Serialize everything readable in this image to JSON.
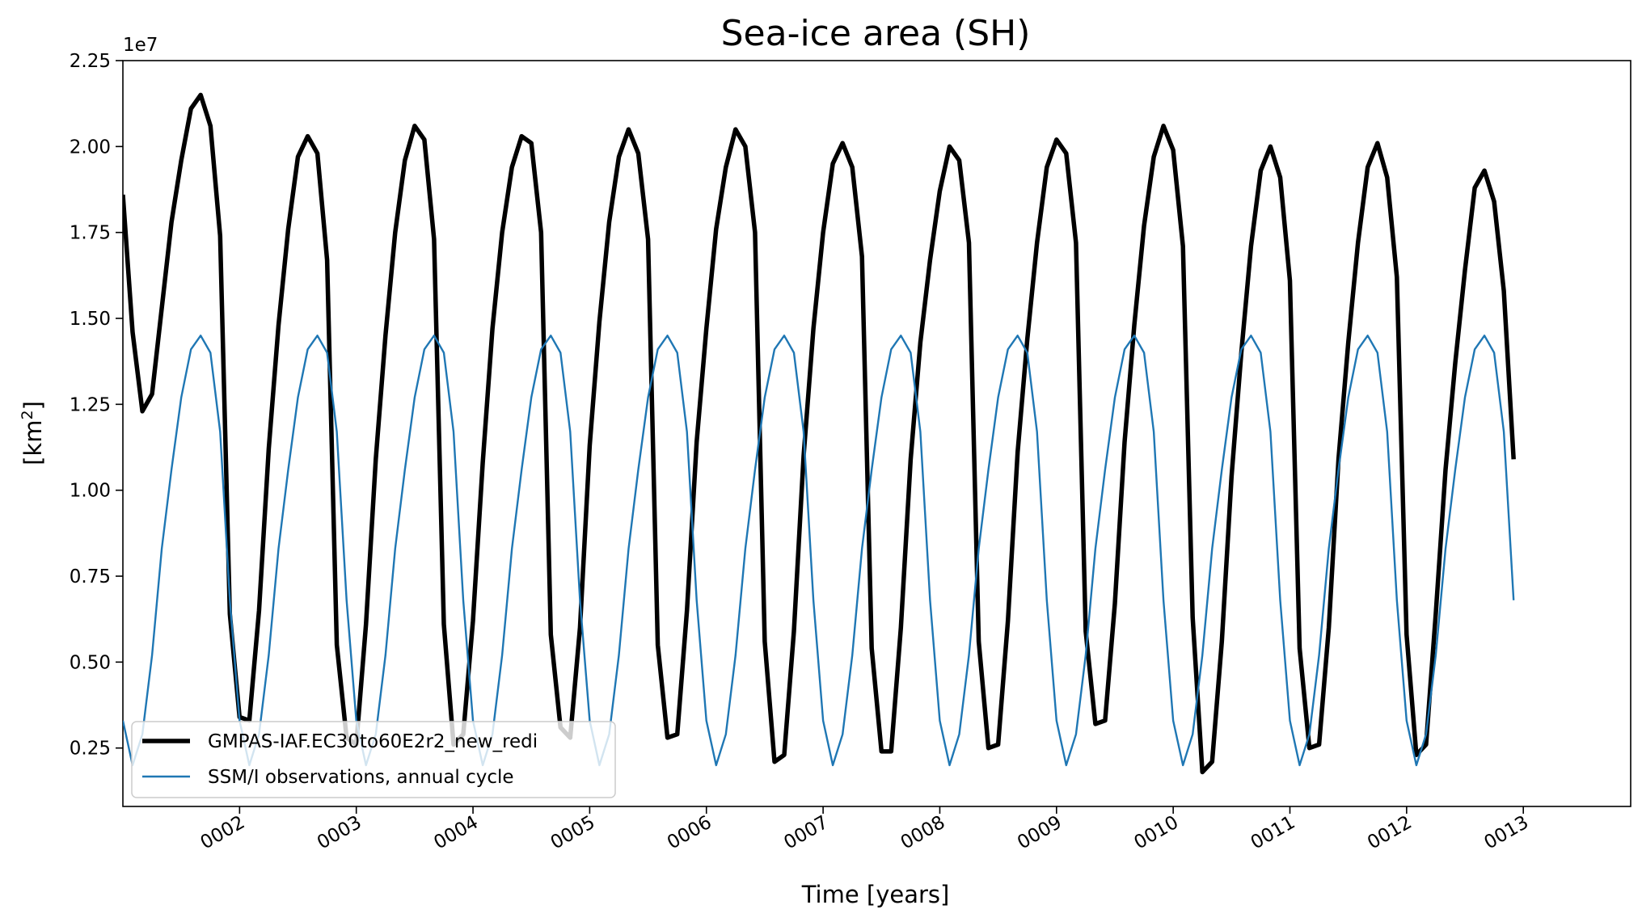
{
  "chart_data": {
    "type": "line",
    "title": "Sea-ice area (SH)",
    "xlabel": "Time [years]",
    "ylabel": "[km²]",
    "y_offset_label": "1e7",
    "y_scale": 10000000,
    "xlim": [
      1.0,
      13.92
    ],
    "ylim": [
      0.08,
      2.25
    ],
    "grid": false,
    "legend_position": "lower-left",
    "x_ticks": [
      2,
      3,
      4,
      5,
      6,
      7,
      8,
      9,
      10,
      11,
      12,
      13
    ],
    "x_tick_labels": [
      "0002",
      "0003",
      "0004",
      "0005",
      "0006",
      "0007",
      "0008",
      "0009",
      "0010",
      "0011",
      "0012",
      "0013"
    ],
    "y_ticks": [
      0.25,
      0.5,
      0.75,
      1.0,
      1.25,
      1.5,
      1.75,
      2.0,
      2.25
    ],
    "y_tick_labels": [
      "0.25",
      "0.50",
      "0.75",
      "1.00",
      "1.25",
      "1.50",
      "1.75",
      "2.00",
      "2.25"
    ],
    "model_years": [
      [
        1.86,
        1.46,
        1.23,
        1.28,
        1.53,
        1.78,
        1.96,
        2.11,
        2.15,
        2.06,
        1.74,
        0.64
      ],
      [
        0.34,
        0.33,
        0.65,
        1.12,
        1.48,
        1.76,
        1.97,
        2.03,
        1.98,
        1.67,
        0.55,
        0.28
      ],
      [
        0.26,
        0.61,
        1.09,
        1.45,
        1.75,
        1.96,
        2.06,
        2.02,
        1.73,
        0.61,
        0.26,
        0.29
      ],
      [
        0.62,
        1.08,
        1.47,
        1.75,
        1.94,
        2.03,
        2.01,
        1.75,
        0.58,
        0.31,
        0.28,
        0.6
      ],
      [
        1.13,
        1.49,
        1.78,
        1.97,
        2.05,
        1.98,
        1.73,
        0.55,
        0.28,
        0.29,
        0.65,
        1.14
      ],
      [
        1.47,
        1.76,
        1.94,
        2.05,
        2.0,
        1.75,
        0.56,
        0.21,
        0.23,
        0.59,
        1.1,
        1.47
      ],
      [
        1.75,
        1.95,
        2.01,
        1.94,
        1.68,
        0.54,
        0.24,
        0.24,
        0.6,
        1.09,
        1.43,
        1.67
      ],
      [
        1.87,
        2.0,
        1.96,
        1.72,
        0.56,
        0.25,
        0.26,
        0.62,
        1.11,
        1.44,
        1.72,
        1.94
      ],
      [
        2.02,
        1.98,
        1.72,
        0.59,
        0.32,
        0.33,
        0.67,
        1.14,
        1.48,
        1.77,
        1.97,
        2.06
      ],
      [
        1.99,
        1.71,
        0.63,
        0.18,
        0.21,
        0.56,
        1.04,
        1.4,
        1.71,
        1.93,
        2.0,
        1.91
      ],
      [
        1.61,
        0.54,
        0.25,
        0.26,
        0.6,
        1.09,
        1.43,
        1.72,
        1.94,
        2.01,
        1.91,
        1.62
      ],
      [
        0.58,
        0.23,
        0.26,
        0.64,
        1.06,
        1.37,
        1.64,
        1.88,
        1.93,
        1.84,
        1.58,
        1.09
      ]
    ],
    "observations_annual_cycle": [
      0.33,
      0.2,
      0.29,
      0.52,
      0.83,
      1.06,
      1.27,
      1.41,
      1.45,
      1.4,
      1.17,
      0.68
    ],
    "series": [
      {
        "name": "GMPAS-IAF.EC30to60E2r2_new_redi",
        "color": "#000000",
        "linewidth": 5.5
      },
      {
        "name": "SSM/I observations, annual cycle",
        "color": "#1f77b4",
        "linewidth": 2.4
      }
    ]
  }
}
